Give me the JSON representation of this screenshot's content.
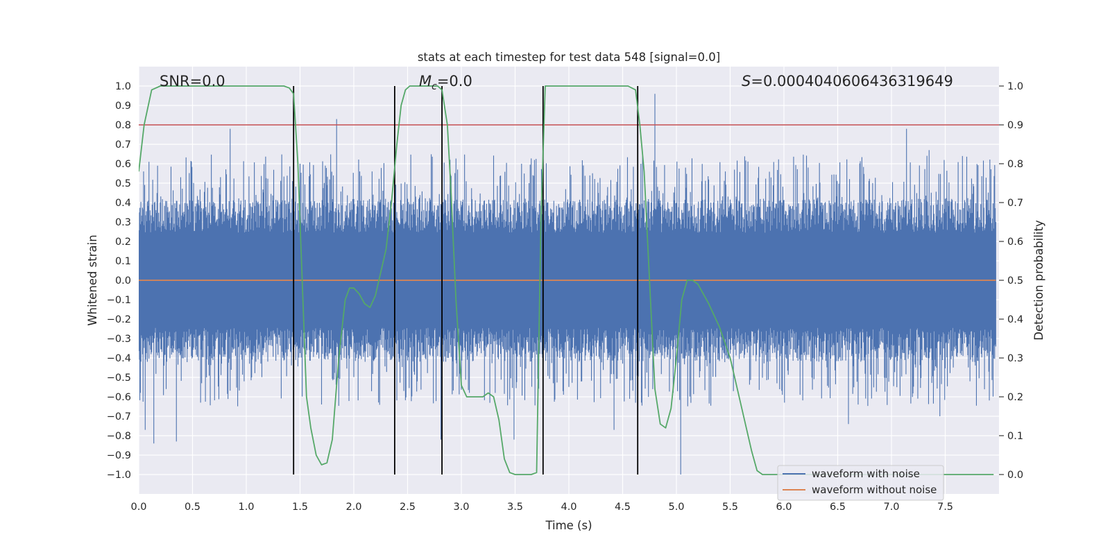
{
  "chart_data": {
    "type": "line",
    "title": "stats at each timestep for test data 548 [signal=0.0]",
    "xlabel": "Time (s)",
    "ylabel": "Whitened strain",
    "y2label": "Detection probability",
    "xlim": [
      0.0,
      8.0
    ],
    "ylim": [
      -1.1,
      1.1
    ],
    "y2lim": [
      -0.05,
      1.05
    ],
    "grid": true,
    "x_ticks": [
      0.0,
      0.5,
      1.0,
      1.5,
      2.0,
      2.5,
      3.0,
      3.5,
      4.0,
      4.5,
      5.0,
      5.5,
      6.0,
      6.5,
      7.0,
      7.5
    ],
    "x_tick_labels": [
      "0.0",
      "0.5",
      "1.0",
      "1.5",
      "2.0",
      "2.5",
      "3.0",
      "3.5",
      "4.0",
      "4.5",
      "5.0",
      "5.5",
      "6.0",
      "6.5",
      "7.0",
      "7.5"
    ],
    "y_ticks": [
      1.0,
      0.9,
      0.8,
      0.7,
      0.6,
      0.5,
      0.4,
      0.3,
      0.2,
      0.1,
      0.0,
      -0.1,
      -0.2,
      -0.3,
      -0.4,
      -0.5,
      -0.6,
      -0.7,
      -0.8,
      -0.9,
      -1.0
    ],
    "y_tick_labels": [
      "1.0",
      "0.9",
      "0.8",
      "0.7",
      "0.6",
      "0.5",
      "0.4",
      "0.3",
      "0.2",
      "0.1",
      "0.0",
      "−0.1",
      "−0.2",
      "−0.3",
      "−0.4",
      "−0.5",
      "−0.6",
      "−0.7",
      "−0.8",
      "−0.9",
      "−1.0"
    ],
    "y2_ticks": [
      1.0,
      0.9,
      0.8,
      0.7,
      0.6,
      0.5,
      0.4,
      0.3,
      0.2,
      0.1,
      0.0
    ],
    "y2_tick_labels": [
      "1.0",
      "0.9",
      "0.8",
      "0.7",
      "0.6",
      "0.5",
      "0.4",
      "0.3",
      "0.2",
      "0.1",
      "0.0"
    ],
    "annotations": {
      "snr": "SNR=0.0",
      "mc_symbol": "M",
      "mc_sub": "c",
      "mc_value": "=0.0",
      "s_symbol": "S",
      "s_value": "=0.0004040606436319649"
    },
    "noise_series": {
      "name": "waveform with noise",
      "color": "#4c72b0",
      "core_amplitude": 0.35,
      "typical_peak": 0.6,
      "peaks": [
        {
          "x": 0.06,
          "y": -0.77
        },
        {
          "x": 0.14,
          "y": -0.84
        },
        {
          "x": 0.35,
          "y": -0.83
        },
        {
          "x": 0.85,
          "y": 0.78
        },
        {
          "x": 1.84,
          "y": 0.83
        },
        {
          "x": 2.81,
          "y": -0.82
        },
        {
          "x": 3.49,
          "y": -0.82
        },
        {
          "x": 4.8,
          "y": 0.96
        },
        {
          "x": 5.04,
          "y": -1.0
        },
        {
          "x": 7.14,
          "y": 0.78
        },
        {
          "x": 7.35,
          "y": 0.67
        },
        {
          "x": 7.45,
          "y": -0.7
        },
        {
          "x": 6.6,
          "y": -0.74
        },
        {
          "x": 4.42,
          "y": -0.77
        },
        {
          "x": 1.5,
          "y": 0.6
        }
      ]
    },
    "clean_series": {
      "name": "waveform without noise",
      "color": "#dd8452",
      "value": 0.0
    },
    "probability_series": {
      "name": "Detection probability",
      "color": "#55a868",
      "x": [
        0.0,
        0.05,
        0.12,
        0.2,
        0.3,
        0.5,
        0.8,
        1.0,
        1.2,
        1.35,
        1.4,
        1.44,
        1.48,
        1.52,
        1.56,
        1.6,
        1.65,
        1.7,
        1.75,
        1.8,
        1.86,
        1.92,
        1.96,
        2.0,
        2.05,
        2.1,
        2.15,
        2.2,
        2.25,
        2.3,
        2.35,
        2.4,
        2.44,
        2.48,
        2.52,
        2.6,
        2.7,
        2.78,
        2.82,
        2.87,
        2.9,
        2.95,
        3.0,
        3.05,
        3.1,
        3.15,
        3.2,
        3.25,
        3.3,
        3.35,
        3.4,
        3.45,
        3.5,
        3.55,
        3.6,
        3.65,
        3.7,
        3.74,
        3.78,
        3.85,
        4.0,
        4.2,
        4.4,
        4.55,
        4.62,
        4.66,
        4.7,
        4.75,
        4.8,
        4.85,
        4.9,
        4.95,
        5.0,
        5.05,
        5.1,
        5.15,
        5.2,
        5.3,
        5.4,
        5.5,
        5.6,
        5.7,
        5.75,
        5.8,
        6.0,
        6.5,
        7.0,
        7.5,
        7.95
      ],
      "y": [
        0.78,
        0.9,
        0.99,
        1.0,
        1.0,
        1.0,
        1.0,
        1.0,
        1.0,
        1.0,
        0.995,
        0.98,
        0.8,
        0.5,
        0.2,
        0.12,
        0.05,
        0.025,
        0.03,
        0.09,
        0.3,
        0.45,
        0.48,
        0.48,
        0.465,
        0.44,
        0.43,
        0.46,
        0.52,
        0.58,
        0.7,
        0.85,
        0.95,
        0.99,
        1.0,
        1.0,
        1.0,
        1.0,
        0.99,
        0.9,
        0.75,
        0.45,
        0.23,
        0.2,
        0.2,
        0.2,
        0.2,
        0.21,
        0.2,
        0.14,
        0.04,
        0.005,
        0.0,
        0.0,
        0.0,
        0.0,
        0.005,
        0.65,
        1.0,
        1.0,
        1.0,
        1.0,
        1.0,
        1.0,
        0.99,
        0.9,
        0.78,
        0.5,
        0.22,
        0.13,
        0.12,
        0.17,
        0.3,
        0.45,
        0.5,
        0.5,
        0.49,
        0.44,
        0.38,
        0.3,
        0.18,
        0.06,
        0.01,
        0.0,
        0.0,
        0.0,
        0.0,
        0.0,
        0.0
      ]
    },
    "threshold": {
      "y2": 0.9,
      "color": "#c44e52"
    },
    "vertical_markers": [
      1.44,
      2.38,
      2.82,
      3.76,
      4.64
    ],
    "vertical_marker_range": [
      0.0,
      1.0
    ],
    "legend": {
      "location": "lower-right",
      "entries": [
        "waveform with noise",
        "waveform without noise"
      ]
    }
  }
}
